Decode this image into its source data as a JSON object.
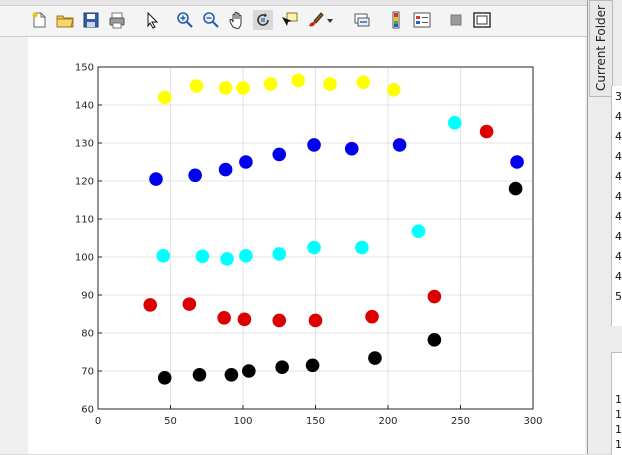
{
  "toolbar": {
    "icons": [
      "new-figure-icon",
      "open-file-icon",
      "save-icon",
      "print-icon",
      "edit-plot-arrow-icon",
      "zoom-in-icon",
      "zoom-out-icon",
      "pan-hand-icon",
      "rotate-3d-icon",
      "data-cursor-icon",
      "brush-icon",
      "brush-dropdown-icon",
      "link-plot-icon",
      "insert-colorbar-icon",
      "insert-legend-icon",
      "hide-plot-tools-icon",
      "show-plot-tools-icon"
    ]
  },
  "side_panel": {
    "title": "Current Folder",
    "rows": [
      "3",
      "4",
      "4",
      "4",
      "4",
      "4",
      "4",
      "4",
      "4",
      "4",
      "5"
    ],
    "lower_rows": [
      "1",
      "1",
      "1",
      "1"
    ]
  },
  "chart_data": {
    "type": "scatter",
    "xlim": [
      0,
      300
    ],
    "ylim": [
      60,
      150
    ],
    "xticks": [
      0,
      50,
      100,
      150,
      200,
      250,
      300
    ],
    "yticks": [
      60,
      70,
      80,
      90,
      100,
      110,
      120,
      130,
      140,
      150
    ],
    "grid": true,
    "series": [
      {
        "color": "#ffff00",
        "points": [
          [
            46,
            142
          ],
          [
            68,
            145
          ],
          [
            88,
            144.5
          ],
          [
            100,
            144.5
          ],
          [
            119,
            145.5
          ],
          [
            138,
            146.5
          ],
          [
            160,
            145.5
          ],
          [
            183,
            146
          ],
          [
            204,
            144
          ]
        ]
      },
      {
        "color": "#0000ee",
        "points": [
          [
            40,
            120.5
          ],
          [
            67,
            121.5
          ],
          [
            88,
            123
          ],
          [
            102,
            125
          ],
          [
            125,
            127
          ],
          [
            149,
            129.5
          ],
          [
            175,
            128.5
          ],
          [
            208,
            129.5
          ],
          [
            289,
            125
          ]
        ]
      },
      {
        "color": "#00ffff",
        "points": [
          [
            45,
            100.3
          ],
          [
            72,
            100.2
          ],
          [
            89,
            99.5
          ],
          [
            102,
            100.3
          ],
          [
            125,
            100.8
          ],
          [
            149,
            102.5
          ],
          [
            182,
            102.5
          ],
          [
            221,
            106.8
          ],
          [
            246,
            135.3
          ]
        ]
      },
      {
        "color": "#dd0000",
        "points": [
          [
            36,
            87.4
          ],
          [
            63,
            87.6
          ],
          [
            87,
            84
          ],
          [
            101,
            83.6
          ],
          [
            125,
            83.3
          ],
          [
            150,
            83.3
          ],
          [
            189,
            84.3
          ],
          [
            232,
            89.6
          ],
          [
            268,
            133
          ]
        ]
      },
      {
        "color": "#000000",
        "points": [
          [
            46,
            68.2
          ],
          [
            70,
            69
          ],
          [
            92,
            69
          ],
          [
            104,
            70
          ],
          [
            127,
            71
          ],
          [
            148,
            71.5
          ],
          [
            191,
            73.4
          ],
          [
            232,
            78.2
          ],
          [
            288,
            118
          ]
        ]
      }
    ]
  }
}
